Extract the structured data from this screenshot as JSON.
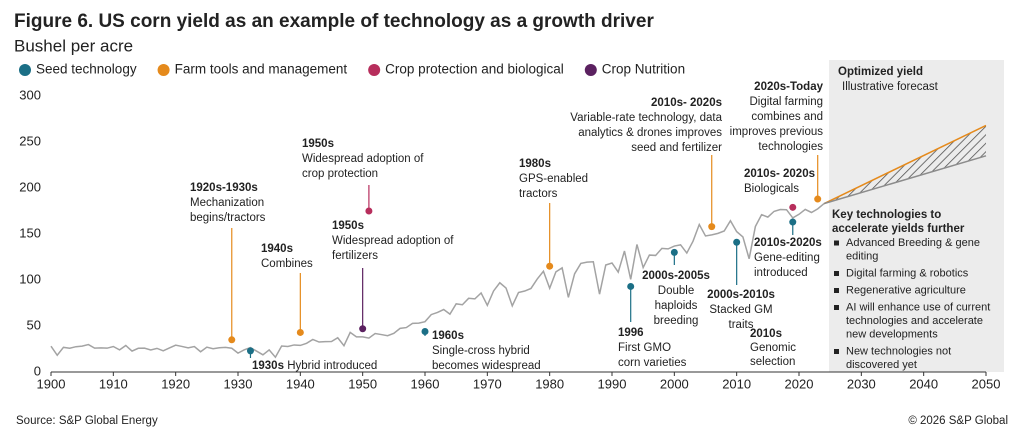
{
  "chart_data": {
    "type": "line",
    "title": "Figure 6. US corn yield as an example of technology as a growth driver",
    "subtitle": "Bushel per acre",
    "legend": [
      {
        "name": "Seed technology",
        "color": "#1b6f86"
      },
      {
        "name": "Farm tools and management",
        "color": "#e58a1c"
      },
      {
        "name": "Crop protection and biological",
        "color": "#b72e5c"
      },
      {
        "name": "Crop Nutrition",
        "color": "#5b2160"
      }
    ],
    "x": [
      1900,
      1901,
      1902,
      1903,
      1904,
      1905,
      1906,
      1907,
      1908,
      1909,
      1910,
      1911,
      1912,
      1913,
      1914,
      1915,
      1916,
      1917,
      1918,
      1919,
      1920,
      1921,
      1922,
      1923,
      1924,
      1925,
      1926,
      1927,
      1928,
      1929,
      1930,
      1931,
      1932,
      1933,
      1934,
      1935,
      1936,
      1937,
      1938,
      1939,
      1940,
      1941,
      1942,
      1943,
      1944,
      1945,
      1946,
      1947,
      1948,
      1949,
      1950,
      1951,
      1952,
      1953,
      1954,
      1955,
      1956,
      1957,
      1958,
      1959,
      1960,
      1961,
      1962,
      1963,
      1964,
      1965,
      1966,
      1967,
      1968,
      1969,
      1970,
      1971,
      1972,
      1973,
      1974,
      1975,
      1976,
      1977,
      1978,
      1979,
      1980,
      1981,
      1982,
      1983,
      1984,
      1985,
      1986,
      1987,
      1988,
      1989,
      1990,
      1991,
      1992,
      1993,
      1994,
      1995,
      1996,
      1997,
      1998,
      1999,
      2000,
      2001,
      2002,
      2003,
      2004,
      2005,
      2006,
      2007,
      2008,
      2009,
      2010,
      2011,
      2012,
      2013,
      2014,
      2015,
      2016,
      2017,
      2018,
      2019,
      2020,
      2021,
      2022,
      2023,
      2024
    ],
    "series": [
      {
        "color": "#a3a3a3",
        "values": [
          28.1,
          18.2,
          26.8,
          25.8,
          27.5,
          28.1,
          29.8,
          25.9,
          26.2,
          25.9,
          27.7,
          24.0,
          28.8,
          22.7,
          25.8,
          25.9,
          24.0,
          25.7,
          23.0,
          26.1,
          29.2,
          27.8,
          26.2,
          27.7,
          22.0,
          27.0,
          25.3,
          26.4,
          26.7,
          25.8,
          20.5,
          24.1,
          26.5,
          22.6,
          18.7,
          24.0,
          16.1,
          28.2,
          27.7,
          29.4,
          28.9,
          31.2,
          35.4,
          32.6,
          33.0,
          33.1,
          37.2,
          28.6,
          43.0,
          38.2,
          38.2,
          36.9,
          41.8,
          40.7,
          39.4,
          42.0,
          47.4,
          48.3,
          52.8,
          53.1,
          54.7,
          62.4,
          64.7,
          67.9,
          62.9,
          74.1,
          73.1,
          80.1,
          79.5,
          85.9,
          72.4,
          88.1,
          97.0,
          91.3,
          71.9,
          86.4,
          88.0,
          90.8,
          101.0,
          109.5,
          91.0,
          108.9,
          113.2,
          81.1,
          106.7,
          118.0,
          119.4,
          119.8,
          84.6,
          116.3,
          118.5,
          108.6,
          131.5,
          100.7,
          138.6,
          113.5,
          127.1,
          126.7,
          134.4,
          133.8,
          136.9,
          138.2,
          129.3,
          142.2,
          160.3,
          147.9,
          149.1,
          150.7,
          153.3,
          164.4,
          152.6,
          146.8,
          123.1,
          158.1,
          171.0,
          168.4,
          174.6,
          176.6,
          176.4,
          167.5,
          171.4,
          176.7,
          173.4,
          177.3,
          183.0
        ]
      }
    ],
    "forecast": {
      "x": [
        2024,
        2050
      ],
      "upper": [
        183,
        268
      ],
      "lower": [
        183,
        235
      ],
      "upper_color": "#e58a1c",
      "lower_color": "#8c8c8c"
    },
    "xlim": [
      1900,
      2050
    ],
    "ylim": [
      0,
      300
    ],
    "xticks": [
      1900,
      1910,
      1920,
      1930,
      1940,
      1950,
      1960,
      1970,
      1980,
      1990,
      2000,
      2010,
      2020,
      2030,
      2040,
      2050
    ],
    "yticks": [
      0,
      50,
      100,
      150,
      200,
      250,
      300
    ],
    "milestones": [
      {
        "year": 1929,
        "value": 35,
        "group": 1,
        "title": "1920s-1930s",
        "lines": [
          "Mechanization",
          "begins/tractors"
        ]
      },
      {
        "year": 1940,
        "value": 43,
        "group": 1,
        "title": "1940s",
        "lines": [
          "Combines"
        ]
      },
      {
        "year": 1932,
        "value": 23,
        "group": 0,
        "title": "1930s",
        "lines": [
          "Hybrid introduced"
        ]
      },
      {
        "year": 1951,
        "value": 175,
        "group": 2,
        "title": "1950s",
        "lines": [
          "Widespread adoption of",
          "crop protection"
        ]
      },
      {
        "year": 1950,
        "value": 47,
        "group": 3,
        "title": "1950s",
        "lines": [
          "Widespread adoption of",
          "fertilizers"
        ]
      },
      {
        "year": 1960,
        "value": 44,
        "group": 0,
        "title": "1960s",
        "lines": [
          "Single-cross hybrid",
          "becomes widespread"
        ]
      },
      {
        "year": 1980,
        "value": 115,
        "group": 1,
        "title": "1980s",
        "lines": [
          "GPS-enabled",
          "tractors"
        ]
      },
      {
        "year": 1993,
        "value": 93,
        "group": 0,
        "title": "1996",
        "lines": [
          "First GMO",
          "corn varieties"
        ]
      },
      {
        "year": 2000,
        "value": 130,
        "group": 0,
        "title": "2000s-2005s",
        "lines": [
          "Double",
          "haploids",
          "breeding"
        ]
      },
      {
        "year": 2006,
        "value": 158,
        "group": 1,
        "title": "2010s- 2020s",
        "lines": [
          "Variable-rate technology, data",
          "analytics & drones improves",
          "seed and fertilizer"
        ]
      },
      {
        "year": 2010,
        "value": 141,
        "group": 0,
        "title": "2000s-2010s",
        "lines": [
          "Stacked GM",
          "traits"
        ]
      },
      {
        "year": 2019,
        "value": 163,
        "group": 0,
        "title": "2010s-2020s",
        "lines": [
          "Gene-editing",
          "introduced"
        ]
      },
      {
        "year": 2019,
        "value": 179,
        "group": 2,
        "title": "2010s- 2020s",
        "lines": [
          "Biologicals"
        ]
      },
      {
        "year": 2023,
        "value": 188,
        "group": 1,
        "title": "2020s-Today",
        "lines": [
          "Digital farming",
          "combines and",
          "improves previous",
          "technologies"
        ]
      }
    ],
    "notes": [
      {
        "title": "2010s",
        "lines": [
          "Genomic",
          "selection"
        ]
      }
    ],
    "panel": {
      "title": "Optimized yield",
      "subtitle": "Illustrative forecast",
      "heading": [
        "Key technologies to",
        "accelerate yields further"
      ],
      "items": [
        [
          "Advanced Breeding & gene",
          "editing"
        ],
        [
          "Digital farming & robotics"
        ],
        [
          "Regenerative agriculture"
        ],
        [
          "AI will enhance use of current",
          "technologies and accelerate",
          "new developments"
        ],
        [
          "New technologies not",
          "discovered yet"
        ]
      ]
    },
    "source": "Source: S&P Global Energy",
    "copyright": "© 2026 S&P Global"
  }
}
